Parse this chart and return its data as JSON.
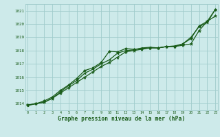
{
  "x": [
    0,
    1,
    2,
    3,
    4,
    5,
    6,
    7,
    8,
    9,
    10,
    11,
    12,
    13,
    14,
    15,
    16,
    17,
    18,
    19,
    20,
    21,
    22,
    23
  ],
  "line1": [
    1013.9,
    1014.0,
    1014.1,
    1014.4,
    1014.8,
    1015.2,
    1015.6,
    1016.0,
    1016.4,
    1016.8,
    1017.1,
    1017.5,
    1017.9,
    1018.0,
    1018.1,
    1018.2,
    1018.2,
    1018.3,
    1018.3,
    1018.4,
    1018.5,
    1019.5,
    1020.2,
    1020.6
  ],
  "line2": [
    1013.9,
    1014.0,
    1014.2,
    1014.5,
    1015.0,
    1015.4,
    1015.9,
    1016.5,
    1016.7,
    1017.1,
    1017.95,
    1017.9,
    1018.15,
    1018.1,
    1018.15,
    1018.2,
    1018.2,
    1018.3,
    1018.3,
    1018.5,
    1018.9,
    1019.85,
    1020.2,
    1021.1
  ],
  "line3": [
    1013.85,
    1014.0,
    1014.1,
    1014.4,
    1014.9,
    1015.35,
    1015.75,
    1016.3,
    1016.6,
    1017.0,
    1017.3,
    1017.8,
    1018.0,
    1018.05,
    1018.2,
    1018.25,
    1018.2,
    1018.3,
    1018.35,
    1018.5,
    1019.0,
    1019.8,
    1020.1,
    1021.1
  ],
  "bg_color": "#cdeaea",
  "grid_color": "#a0cccc",
  "line_color": "#1a5c1a",
  "xlabel": "Graphe pression niveau de la mer (hPa)",
  "ylim": [
    1013.5,
    1021.5
  ],
  "xlim": [
    -0.3,
    23.3
  ],
  "yticks": [
    1014,
    1015,
    1016,
    1017,
    1018,
    1019,
    1020,
    1021
  ],
  "xticks": [
    0,
    1,
    2,
    3,
    4,
    5,
    6,
    7,
    8,
    9,
    10,
    11,
    12,
    13,
    14,
    15,
    16,
    17,
    18,
    19,
    20,
    21,
    22,
    23
  ]
}
